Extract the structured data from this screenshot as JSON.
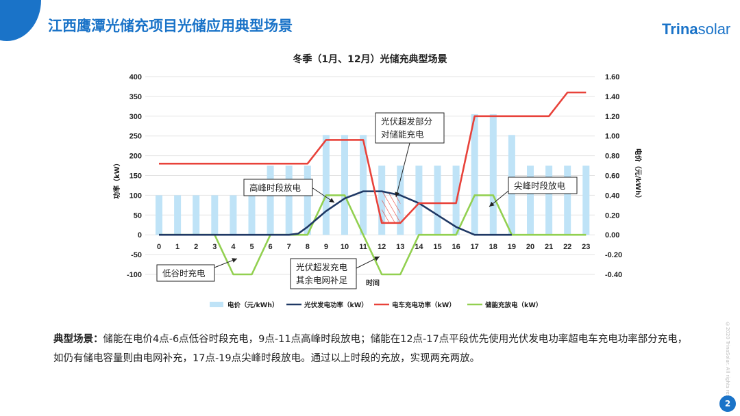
{
  "slide": {
    "title": "江西鹰潭光储充项目光储应用典型场景",
    "logo_bold": "Trina",
    "logo_light": "solar",
    "page_number": "2",
    "side_note": "©2020 TrinaSolar. All rights reserved.",
    "desc_label": "典型场景：",
    "desc_text": "储能在电价4点-6点低谷时段充电，9点-11点高峰时段放电；储能在12点-17点平段优先使用光伏发电功率超电车充电功率部分充电，如仍有储电容量则由电网补充，17点-19点尖峰时段放电。通过以上时段的充放，实现两充两放。"
  },
  "colors": {
    "brand": "#1a73c8",
    "price_bar": "#bfe3f7",
    "pv_line": "#1f3864",
    "ev_line": "#e8423a",
    "storage_line": "#92d050"
  },
  "chart_data": {
    "type": "bar+line",
    "title": "冬季（1月、12月）光储充典型场景",
    "xlabel": "时间",
    "ylabel": "功率（kW）",
    "y2label": "电价（元/kWh）",
    "ylim": [
      -100,
      400
    ],
    "yticks": [
      -100,
      -50,
      0,
      50,
      100,
      150,
      200,
      250,
      300,
      350,
      400
    ],
    "y2lim": [
      -0.4,
      1.6
    ],
    "y2ticks": [
      "-0.40",
      "-0.20",
      "0.00",
      "0.20",
      "0.40",
      "0.60",
      "0.80",
      "1.00",
      "1.20",
      "1.40",
      "1.60"
    ],
    "categories": [
      "0",
      "1",
      "2",
      "3",
      "4",
      "5",
      "6",
      "7",
      "8",
      "9",
      "10",
      "11",
      "12",
      "13",
      "14",
      "15",
      "16",
      "17",
      "18",
      "19",
      "20",
      "21",
      "22",
      "23"
    ],
    "price": [
      0.4,
      0.4,
      0.4,
      0.4,
      0.4,
      0.4,
      0.7,
      0.7,
      0.7,
      1.01,
      1.01,
      1.01,
      0.7,
      0.7,
      0.7,
      0.7,
      0.7,
      1.22,
      1.22,
      1.01,
      0.7,
      0.7,
      0.7,
      0.7
    ],
    "pv": [
      [
        0,
        0
      ],
      [
        7,
        0
      ],
      [
        7.5,
        3
      ],
      [
        8,
        20
      ],
      [
        9,
        60
      ],
      [
        10,
        92
      ],
      [
        11,
        110
      ],
      [
        12,
        110
      ],
      [
        13,
        100
      ],
      [
        14,
        80
      ],
      [
        15,
        50
      ],
      [
        16,
        20
      ],
      [
        17,
        0
      ],
      [
        19,
        0
      ]
    ],
    "ev": [
      [
        0,
        180
      ],
      [
        8,
        180
      ],
      [
        9,
        240
      ],
      [
        11,
        240
      ],
      [
        12,
        30
      ],
      [
        13,
        30
      ],
      [
        14,
        80
      ],
      [
        16,
        80
      ],
      [
        17,
        300
      ],
      [
        21,
        300
      ],
      [
        22,
        360
      ],
      [
        23,
        360
      ]
    ],
    "storage": [
      [
        0,
        0
      ],
      [
        3,
        0
      ],
      [
        4,
        -100
      ],
      [
        5,
        -100
      ],
      [
        6,
        0
      ],
      [
        8,
        0
      ],
      [
        9,
        100
      ],
      [
        10,
        100
      ],
      [
        11,
        0
      ],
      [
        12,
        -100
      ],
      [
        13,
        -100
      ],
      [
        14,
        0
      ],
      [
        16,
        0
      ],
      [
        17,
        100
      ],
      [
        18,
        100
      ],
      [
        19,
        0
      ],
      [
        23,
        0
      ]
    ],
    "legend": [
      "电价（元/kWh）",
      "光伏发电功率（kW）",
      "电车充电功率（kW）",
      "储能充放电（kW）"
    ],
    "legend_position": "bottom",
    "annotations": [
      {
        "lines": [
          "高峰时段放电"
        ]
      },
      {
        "lines": [
          "光伏超发部分",
          "对储能充电"
        ]
      },
      {
        "lines": [
          "尖峰时段放电"
        ]
      },
      {
        "lines": [
          "低谷时充电"
        ]
      },
      {
        "lines": [
          "光伏超发充电",
          "其余电网补足"
        ]
      }
    ]
  }
}
